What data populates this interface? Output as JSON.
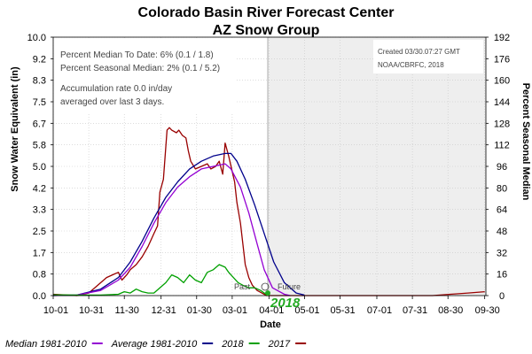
{
  "chart_data": {
    "type": "line",
    "title": "Colorado Basin River Forecast Center",
    "subtitle": "AZ Snow  Group",
    "xlabel": "Date",
    "ylabel": "Snow Water Equivalent (in)",
    "y2label": "Percent Seasonal Median",
    "ylim": [
      0,
      10
    ],
    "y2lim": [
      0,
      192
    ],
    "yticks": [
      "0.0",
      "0.8",
      "1.7",
      "2.5",
      "3.3",
      "4.2",
      "5.0",
      "5.8",
      "6.7",
      "7.5",
      "8.3",
      "9.2",
      "10.0"
    ],
    "y2ticks": [
      "0",
      "16",
      "32",
      "48",
      "64",
      "80",
      "96",
      "112",
      "128",
      "144",
      "160",
      "176",
      "192"
    ],
    "xlim": [
      0,
      365
    ],
    "xtick_labels": [
      "10-01",
      "10-31",
      "11-30",
      "12-31",
      "01-30",
      "03-01",
      "04-01",
      "05-01",
      "05-31",
      "07-01",
      "07-31",
      "08-30",
      "09-30"
    ],
    "xtick_days": [
      0,
      30,
      60,
      91,
      121,
      151,
      182,
      212,
      242,
      273,
      303,
      333,
      364
    ],
    "forecast_start_day": 181,
    "grid": true,
    "legend_position": "bottom",
    "series": [
      {
        "name": "Median 1981-2010",
        "color": "#9400d3",
        "x": [
          0,
          20,
          40,
          55,
          65,
          75,
          85,
          95,
          105,
          115,
          125,
          135,
          145,
          150,
          158,
          165,
          172,
          178,
          185,
          195,
          200
        ],
        "y": [
          0.0,
          0.02,
          0.2,
          0.6,
          1.1,
          1.9,
          2.8,
          3.6,
          4.2,
          4.6,
          4.9,
          5.0,
          5.1,
          4.9,
          4.2,
          3.2,
          2.0,
          1.0,
          0.3,
          0.05,
          0.0
        ]
      },
      {
        "name": "Average 1981-2010",
        "color": "#00008b",
        "x": [
          0,
          20,
          40,
          55,
          65,
          75,
          85,
          95,
          105,
          115,
          125,
          135,
          145,
          150,
          155,
          162,
          170,
          178,
          186,
          195,
          205,
          212
        ],
        "y": [
          0.0,
          0.02,
          0.25,
          0.7,
          1.3,
          2.1,
          3.0,
          3.8,
          4.4,
          4.9,
          5.2,
          5.4,
          5.5,
          5.5,
          5.2,
          4.5,
          3.5,
          2.4,
          1.3,
          0.5,
          0.1,
          0.02
        ]
      },
      {
        "name": "2018",
        "color": "#00a000",
        "x": [
          0,
          20,
          40,
          55,
          60,
          65,
          70,
          75,
          80,
          85,
          90,
          95,
          100,
          105,
          110,
          115,
          120,
          125,
          130,
          135,
          140,
          145,
          148,
          152,
          156,
          160,
          165,
          170,
          175,
          178,
          181
        ],
        "y": [
          0.03,
          0.02,
          0.02,
          0.05,
          0.15,
          0.1,
          0.25,
          0.15,
          0.1,
          0.1,
          0.3,
          0.5,
          0.8,
          0.7,
          0.5,
          0.8,
          0.6,
          0.5,
          0.9,
          1.0,
          1.2,
          1.1,
          0.9,
          0.7,
          0.5,
          0.4,
          0.3,
          0.3,
          0.2,
          0.1,
          0.02
        ]
      },
      {
        "name": "2017",
        "color": "#990000",
        "x": [
          0,
          20,
          30,
          45,
          50,
          55,
          58,
          62,
          65,
          70,
          75,
          80,
          85,
          88,
          90,
          93,
          96,
          98,
          100,
          104,
          106,
          109,
          112,
          114,
          116,
          120,
          125,
          130,
          133,
          137,
          140,
          143,
          145,
          148,
          151,
          153,
          155,
          158,
          160,
          162,
          165,
          168,
          172,
          176,
          180,
          200,
          230,
          260,
          290,
          320,
          335,
          350,
          364
        ],
        "y": [
          0.05,
          0.0,
          0.1,
          0.7,
          0.8,
          0.9,
          0.6,
          0.8,
          1.0,
          1.2,
          1.5,
          1.9,
          2.4,
          2.7,
          4.0,
          4.5,
          6.4,
          6.5,
          6.4,
          6.3,
          6.4,
          6.2,
          6.1,
          5.6,
          5.2,
          4.9,
          5.0,
          5.1,
          4.9,
          5.0,
          5.2,
          4.7,
          5.9,
          5.4,
          4.8,
          4.4,
          3.6,
          2.8,
          2.0,
          1.2,
          0.7,
          0.4,
          0.2,
          0.1,
          0.0,
          0.0,
          0.0,
          0.0,
          0.0,
          0.0,
          0.05,
          0.1,
          0.15
        ]
      }
    ],
    "annotations": {
      "pct_median_to_date": "Percent Median To Date: 6% (0.1 / 1.8)",
      "pct_seasonal_median": "Percent Seasonal Median: 2% (0.1 / 5.2)",
      "accum_rate_line1": "Accumulation rate 0.0 in/day",
      "accum_rate_line2": "averaged over last 3 days.",
      "created": "Created 03/30.07:27 GMT",
      "source": "NOAA/CBRFC, 2018",
      "past_label": "Past",
      "future_label": "Future",
      "year_label": "2018",
      "year_label_color": "#22aa22",
      "marker_value_2018": 0.1
    }
  }
}
